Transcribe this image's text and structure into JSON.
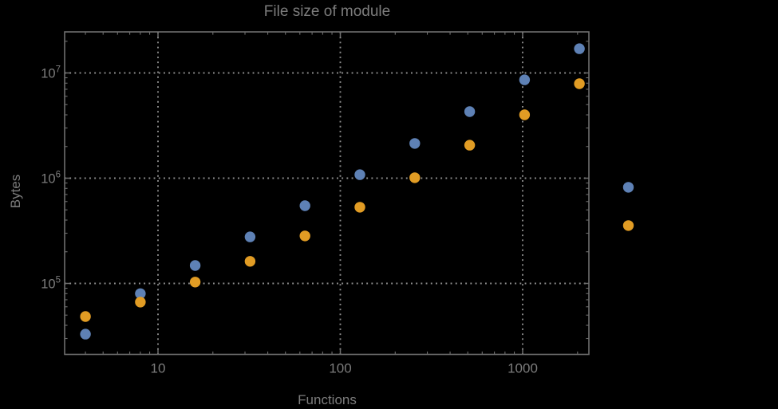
{
  "chart_data": {
    "type": "scatter",
    "title": "File size of module",
    "xlabel": "Functions",
    "ylabel": "Bytes",
    "x_scale": "log",
    "y_scale": "log",
    "grid": "dotted-at-decades",
    "legend": "none",
    "x_ticks": [
      {
        "value": 10,
        "label": "10"
      },
      {
        "value": 100,
        "label": "100"
      },
      {
        "value": 1000,
        "label": "1000"
      }
    ],
    "y_ticks": [
      {
        "value": 100000,
        "base": "10",
        "exponent": "5"
      },
      {
        "value": 1000000,
        "base": "10",
        "exponent": "6"
      },
      {
        "value": 10000000,
        "base": "10",
        "exponent": "7"
      }
    ],
    "series": [
      {
        "name": "series-blue",
        "color": "#5E81B5",
        "points": [
          [
            4,
            33000
          ],
          [
            8,
            80000
          ],
          [
            16,
            148000
          ],
          [
            32,
            277000
          ],
          [
            64,
            548000
          ],
          [
            128,
            1080000
          ],
          [
            256,
            2140000
          ],
          [
            512,
            4290000
          ],
          [
            1024,
            8600000
          ],
          [
            2048,
            17000000
          ],
          [
            3800,
            820000
          ]
        ]
      },
      {
        "name": "series-orange",
        "color": "#E19C24",
        "points": [
          [
            4,
            48500
          ],
          [
            8,
            66500
          ],
          [
            16,
            103000
          ],
          [
            32,
            162000
          ],
          [
            64,
            283000
          ],
          [
            128,
            530000
          ],
          [
            256,
            1010000
          ],
          [
            512,
            2060000
          ],
          [
            1024,
            4000000
          ],
          [
            2048,
            7900000
          ],
          [
            3800,
            355000
          ]
        ]
      }
    ],
    "colors": {
      "background": "#000000",
      "frame": "#6E6E6E",
      "grid": "#8E8E8E",
      "text": "#7C7C7C",
      "series_blue": "#5E81B5",
      "series_orange": "#E19C24"
    }
  }
}
